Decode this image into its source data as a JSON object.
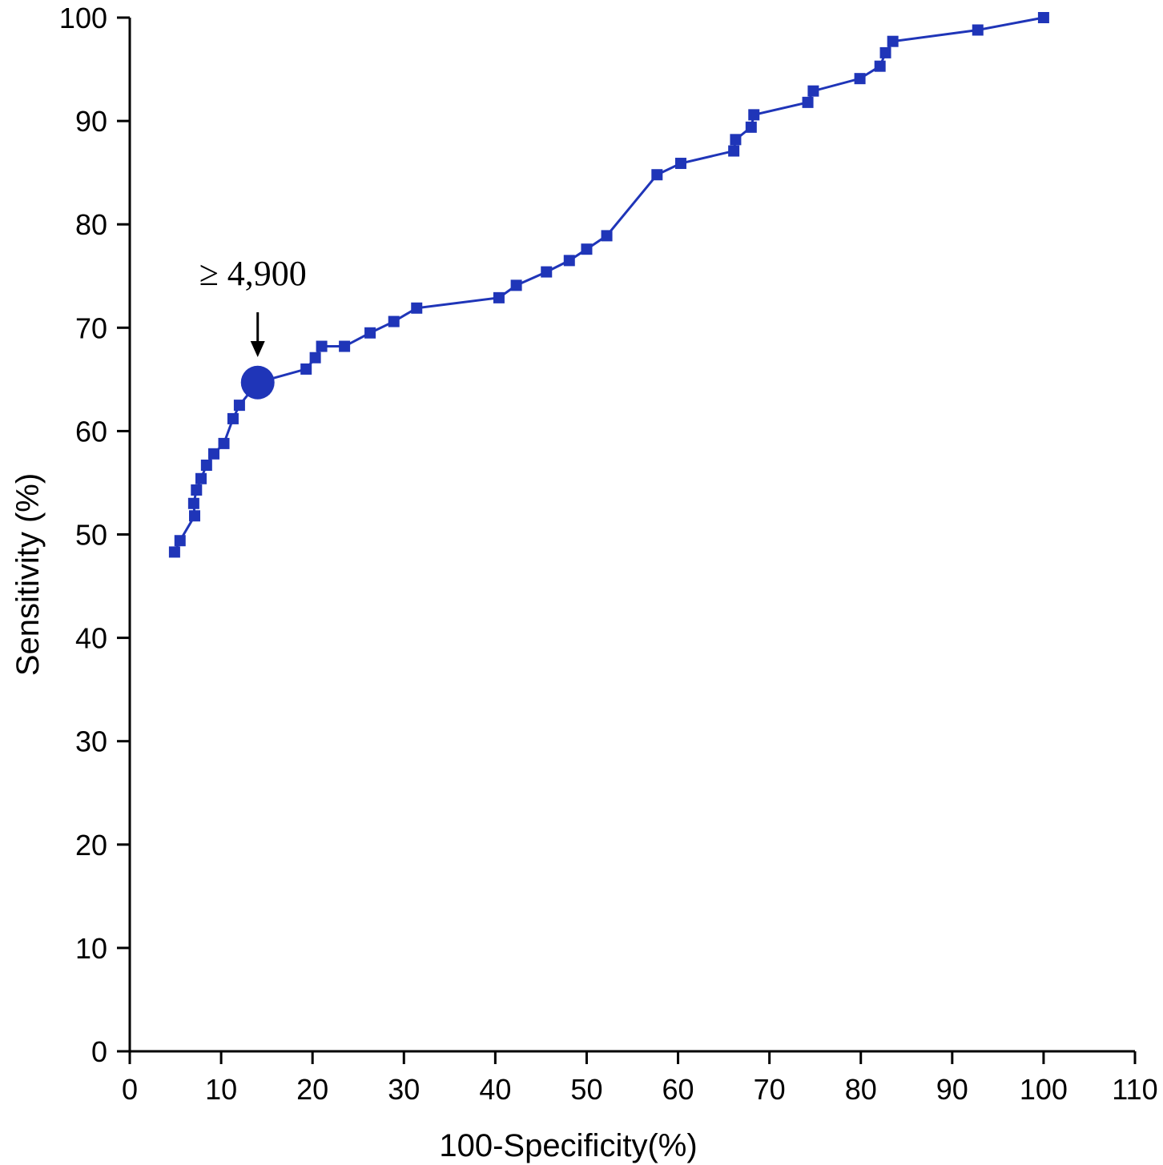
{
  "chart_data": {
    "type": "line",
    "title": "",
    "xlabel": "100-Specificity(%)",
    "ylabel": "Sensitivity (%)",
    "xlim": [
      0,
      110
    ],
    "ylim": [
      0,
      100
    ],
    "xticks": [
      0,
      10,
      20,
      30,
      40,
      50,
      60,
      70,
      80,
      90,
      100,
      110
    ],
    "yticks": [
      0,
      10,
      20,
      30,
      40,
      50,
      60,
      70,
      80,
      90,
      100
    ],
    "grid": false,
    "legend": "none",
    "series": [
      {
        "color": "#1f35b8",
        "marker": "square",
        "points": [
          [
            4.9,
            48.3
          ],
          [
            5.5,
            49.4
          ],
          [
            7.1,
            51.8
          ],
          [
            7.0,
            53.0
          ],
          [
            7.3,
            54.3
          ],
          [
            7.8,
            55.4
          ],
          [
            8.4,
            56.7
          ],
          [
            9.2,
            57.8
          ],
          [
            10.3,
            58.8
          ],
          [
            11.3,
            61.2
          ],
          [
            12.0,
            62.5
          ],
          [
            14.0,
            64.7
          ],
          [
            19.3,
            66.0
          ],
          [
            20.3,
            67.1
          ],
          [
            21.0,
            68.2
          ],
          [
            23.5,
            68.2
          ],
          [
            26.3,
            69.5
          ],
          [
            28.9,
            70.6
          ],
          [
            31.4,
            71.9
          ],
          [
            40.4,
            72.9
          ],
          [
            42.3,
            74.1
          ],
          [
            45.6,
            75.4
          ],
          [
            48.1,
            76.5
          ],
          [
            50.0,
            77.6
          ],
          [
            52.2,
            78.9
          ],
          [
            57.7,
            84.8
          ],
          [
            60.3,
            85.9
          ],
          [
            66.1,
            87.1
          ],
          [
            66.3,
            88.2
          ],
          [
            68.0,
            89.4
          ],
          [
            68.3,
            90.6
          ],
          [
            74.2,
            91.8
          ],
          [
            74.8,
            92.9
          ],
          [
            79.9,
            94.1
          ],
          [
            82.1,
            95.3
          ],
          [
            82.7,
            96.6
          ],
          [
            83.5,
            97.7
          ],
          [
            92.8,
            98.8
          ],
          [
            100.0,
            100.0
          ]
        ]
      }
    ],
    "highlight": {
      "x": 14.0,
      "y": 64.7,
      "label": "≥ 4,900"
    }
  }
}
